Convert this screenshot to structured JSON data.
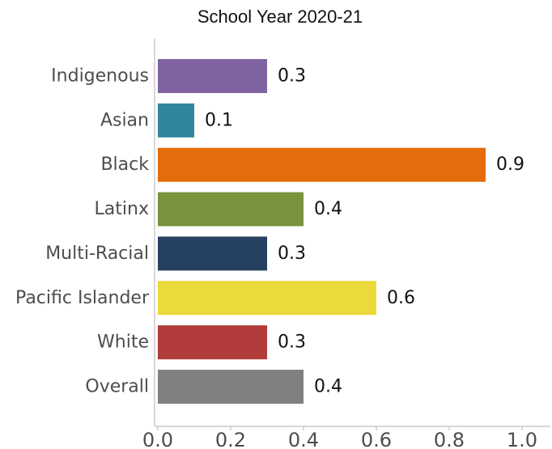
{
  "chart_data": {
    "type": "bar",
    "orientation": "horizontal",
    "title_partial": "",
    "title": "School Year 2020-21",
    "categories": [
      "Indigenous",
      "Asian",
      "Black",
      "Latinx",
      "Multi-Racial",
      "Pacific Islander",
      "White",
      "Overall"
    ],
    "values": [
      0.3,
      0.1,
      0.9,
      0.4,
      0.3,
      0.6,
      0.3,
      0.4
    ],
    "value_labels": [
      "0.3",
      "0.1",
      "0.9",
      "0.4",
      "0.3",
      "0.6",
      "0.3",
      "0.4"
    ],
    "colors": [
      "#8064a2",
      "#31859c",
      "#e46c0a",
      "#77933c",
      "#254061",
      "#ecd93a",
      "#b03b3a",
      "#808080"
    ],
    "xlim": [
      0,
      1.0
    ],
    "xticks": [
      0.0,
      0.2,
      0.4,
      0.6,
      0.8,
      1.0
    ],
    "xtick_labels": [
      "0.0",
      "0.2",
      "0.4",
      "0.6",
      "0.8",
      "1.0"
    ],
    "xlabel": "",
    "ylabel": "",
    "grid": false,
    "legend": "none"
  }
}
